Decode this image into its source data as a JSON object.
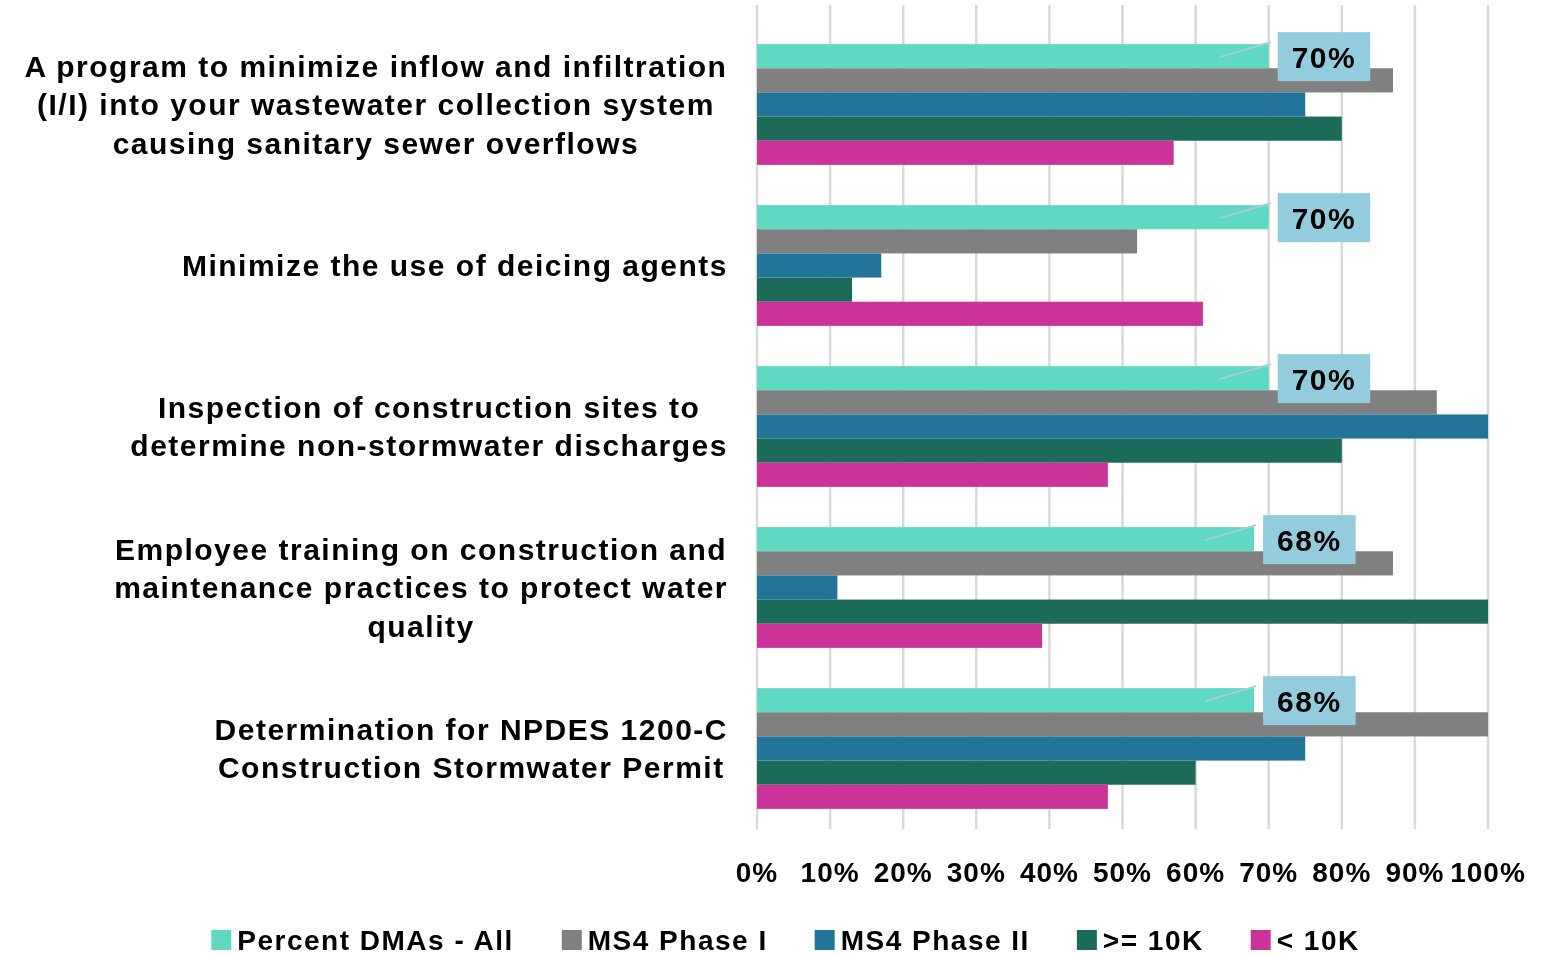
{
  "chart_data": {
    "type": "bar",
    "orientation": "horizontal",
    "categories": [
      "A program to minimize inflow and infiltration\n(I/I) into your wastewater collection system\ncausing sanitary sewer overflows",
      "Minimize the use of deicing agents",
      "Inspection of construction sites to\ndetermine non-stormwater discharges",
      "Employee training on construction and\nmaintenance practices to protect water\nquality",
      "Determination for NPDES 1200-C\nConstruction Stormwater Permit"
    ],
    "series": [
      {
        "name": "Percent DMAs - All",
        "color": "#5fd9c1",
        "values": [
          70,
          70,
          70,
          68,
          68
        ],
        "value_labels": [
          "70%",
          "70%",
          "70%",
          "68%",
          "68%"
        ]
      },
      {
        "name": "MS4 Phase I",
        "color": "#808080",
        "values": [
          87,
          52,
          93,
          87,
          100
        ]
      },
      {
        "name": "MS4 Phase II",
        "color": "#237499",
        "values": [
          75,
          17,
          100,
          11,
          75
        ]
      },
      {
        "name": ">= 10K",
        "color": "#1c6b5a",
        "values": [
          80,
          13,
          80,
          100,
          60
        ]
      },
      {
        "name": "< 10K",
        "color": "#cc3399",
        "values": [
          57,
          61,
          48,
          39,
          48
        ]
      }
    ],
    "xlim": [
      0,
      100
    ],
    "xticks": [
      {
        "value": 0,
        "label": "0%"
      },
      {
        "value": 10,
        "label": "10%"
      },
      {
        "value": 20,
        "label": "20%"
      },
      {
        "value": 30,
        "label": "30%"
      },
      {
        "value": 40,
        "label": "40%"
      },
      {
        "value": 50,
        "label": "50%"
      },
      {
        "value": 60,
        "label": "60%"
      },
      {
        "value": 70,
        "label": "70%"
      },
      {
        "value": 80,
        "label": "80%"
      },
      {
        "value": 90,
        "label": "90%"
      },
      {
        "value": 100,
        "label": "100%"
      }
    ],
    "grid": "x",
    "legend": "bottom"
  }
}
